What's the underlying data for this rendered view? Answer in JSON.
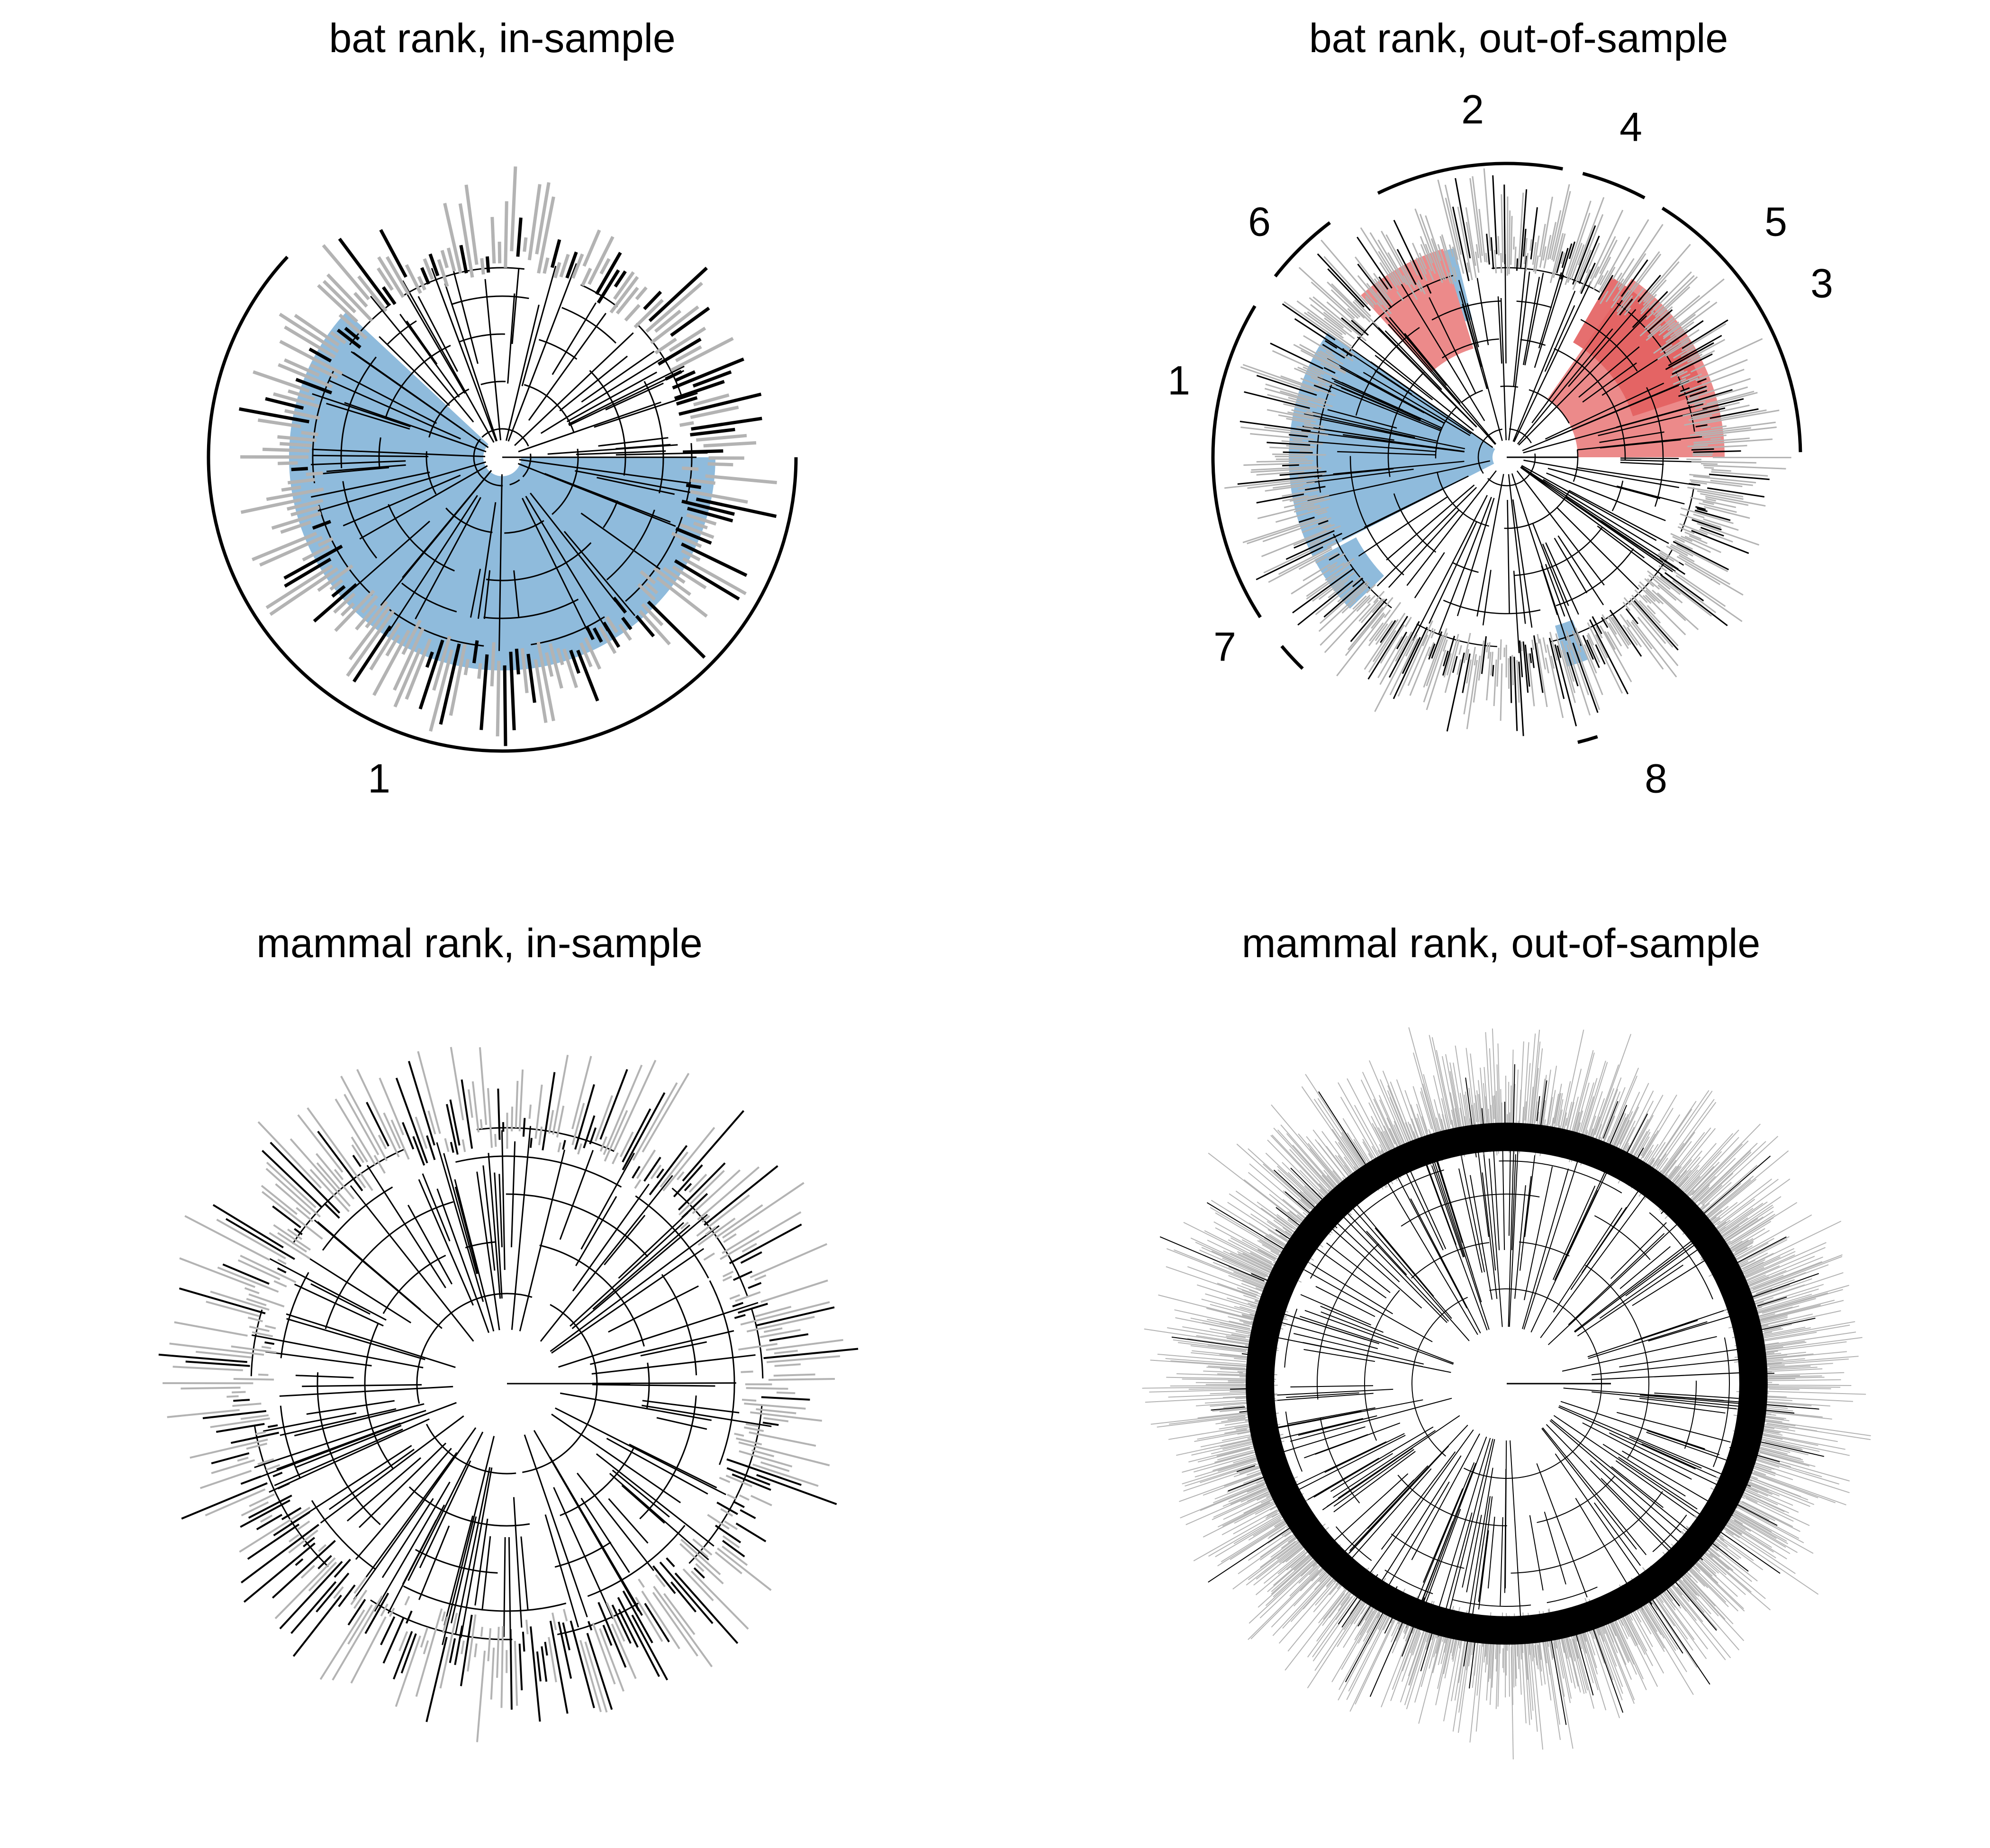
{
  "colors": {
    "background": "#ffffff",
    "branch": "#000000",
    "tip_gray": "#b3b3b3",
    "blue_clade": "#8fbbdc",
    "red_clade": "#ec8a8a",
    "red_clade_dark": "#e35f5f",
    "bracket": "#000000"
  },
  "panels": [
    {
      "title": "bat rank, in-sample",
      "clade_labels": [
        "1"
      ]
    },
    {
      "title": "bat rank, out-of-sample",
      "clade_labels": [
        "1",
        "2",
        "3",
        "4",
        "5",
        "6",
        "7",
        "8"
      ]
    },
    {
      "title": "mammal rank, in-sample",
      "clade_labels": []
    },
    {
      "title": "mammal rank, out-of-sample",
      "clade_labels": []
    }
  ]
}
